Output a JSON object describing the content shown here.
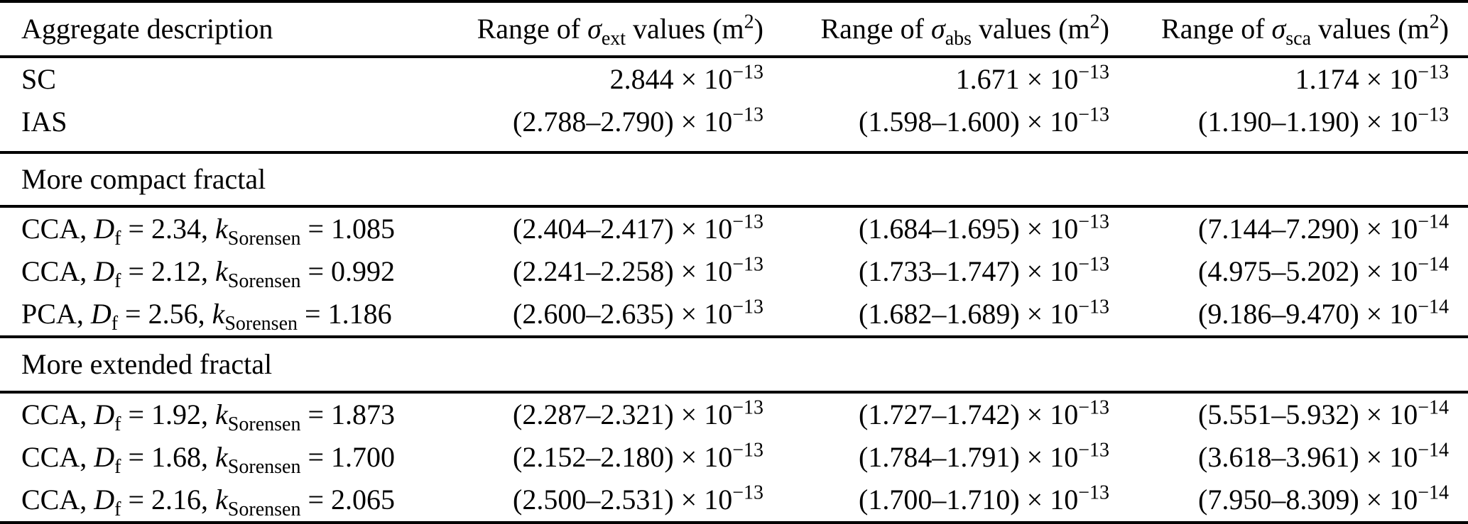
{
  "colors": {
    "text": "#000000",
    "background": "#ffffff",
    "rule": "#000000"
  },
  "table": {
    "headers": {
      "col1": "Aggregate description",
      "col2": {
        "pre": "Range of ",
        "sym": "σ",
        "sub": "ext",
        "mid": " values (m",
        "sup": "2",
        "post": ")"
      },
      "col3": {
        "pre": "Range of ",
        "sym": "σ",
        "sub": "abs",
        "mid": " values (m",
        "sup": "2",
        "post": ")"
      },
      "col4": {
        "pre": "Range of ",
        "sym": "σ",
        "sub": "sca",
        "mid": " values (m",
        "sup": "2",
        "post": ")"
      }
    },
    "sections": {
      "compact": "More compact fractal",
      "extended": "More extended fractal"
    },
    "rows": [
      {
        "label": {
          "p0": "SC"
        },
        "ext": {
          "base": "2.844 × 10",
          "exp": "−13"
        },
        "abs": {
          "base": "1.671 × 10",
          "exp": "−13"
        },
        "sca": {
          "base": "1.174 × 10",
          "exp": "−13"
        }
      },
      {
        "label": {
          "p0": "IAS"
        },
        "ext": {
          "base": "(2.788–2.790) × 10",
          "exp": "−13"
        },
        "abs": {
          "base": "(1.598–1.600) × 10",
          "exp": "−13"
        },
        "sca": {
          "base": "(1.190–1.190) × 10",
          "exp": "−13"
        }
      },
      {
        "label": {
          "p0": "CCA, ",
          "p1": "D",
          "p2": "f",
          "p3": " = 2.34, ",
          "p4": "k",
          "p5": "Sorensen",
          "p6": " = 1.085"
        },
        "ext": {
          "base": "(2.404–2.417) × 10",
          "exp": "−13"
        },
        "abs": {
          "base": "(1.684–1.695) × 10",
          "exp": "−13"
        },
        "sca": {
          "base": "(7.144–7.290) × 10",
          "exp": "−14"
        }
      },
      {
        "label": {
          "p0": "CCA, ",
          "p1": "D",
          "p2": "f",
          "p3": " = 2.12, ",
          "p4": "k",
          "p5": "Sorensen",
          "p6": " = 0.992"
        },
        "ext": {
          "base": "(2.241–2.258) × 10",
          "exp": "−13"
        },
        "abs": {
          "base": "(1.733–1.747) × 10",
          "exp": "−13"
        },
        "sca": {
          "base": "(4.975–5.202) × 10",
          "exp": "−14"
        }
      },
      {
        "label": {
          "p0": "PCA, ",
          "p1": "D",
          "p2": "f",
          "p3": " = 2.56, ",
          "p4": "k",
          "p5": "Sorensen",
          "p6": " = 1.186"
        },
        "ext": {
          "base": "(2.600–2.635) × 10",
          "exp": "−13"
        },
        "abs": {
          "base": "(1.682–1.689) × 10",
          "exp": "−13"
        },
        "sca": {
          "base": "(9.186–9.470) × 10",
          "exp": "−14"
        }
      },
      {
        "label": {
          "p0": "CCA, ",
          "p1": "D",
          "p2": "f",
          "p3": " = 1.92, ",
          "p4": "k",
          "p5": "Sorensen",
          "p6": " = 1.873"
        },
        "ext": {
          "base": "(2.287–2.321) × 10",
          "exp": "−13"
        },
        "abs": {
          "base": "(1.727–1.742) × 10",
          "exp": "−13"
        },
        "sca": {
          "base": "(5.551–5.932) × 10",
          "exp": "−14"
        }
      },
      {
        "label": {
          "p0": "CCA, ",
          "p1": "D",
          "p2": "f",
          "p3": " = 1.68, ",
          "p4": "k",
          "p5": "Sorensen",
          "p6": " = 1.700"
        },
        "ext": {
          "base": "(2.152–2.180) × 10",
          "exp": "−13"
        },
        "abs": {
          "base": "(1.784–1.791) × 10",
          "exp": "−13"
        },
        "sca": {
          "base": "(3.618–3.961) × 10",
          "exp": "−14"
        }
      },
      {
        "label": {
          "p0": "CCA, ",
          "p1": "D",
          "p2": "f",
          "p3": " = 2.16, ",
          "p4": "k",
          "p5": "Sorensen",
          "p6": " = 2.065"
        },
        "ext": {
          "base": "(2.500–2.531) × 10",
          "exp": "−13"
        },
        "abs": {
          "base": "(1.700–1.710) × 10",
          "exp": "−13"
        },
        "sca": {
          "base": "(7.950–8.309) × 10",
          "exp": "−14"
        }
      }
    ]
  }
}
